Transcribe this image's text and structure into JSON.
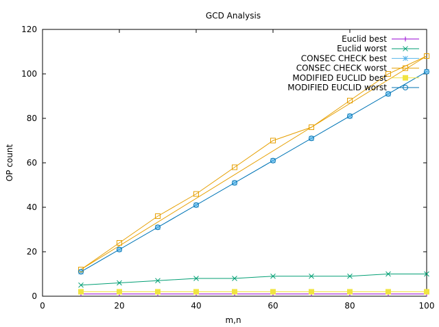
{
  "chart_data": {
    "type": "line",
    "title": "GCD Analysis",
    "xlabel": "m,n",
    "ylabel": "OP count",
    "xlim": [
      0,
      100
    ],
    "ylim": [
      0,
      120
    ],
    "x_ticks": [
      0,
      20,
      40,
      60,
      80,
      100
    ],
    "y_ticks": [
      0,
      20,
      40,
      60,
      80,
      100,
      120
    ],
    "grid": false,
    "legend_position": "top-right",
    "x": [
      10,
      20,
      30,
      40,
      50,
      60,
      70,
      80,
      90,
      100
    ],
    "series": [
      {
        "name": "Euclid best",
        "color": "#9400d3",
        "marker": "plus",
        "values": [
          1,
          1,
          1,
          1,
          1,
          1,
          1,
          1,
          1,
          1
        ]
      },
      {
        "name": "Euclid worst",
        "color": "#009e73",
        "marker": "x",
        "values": [
          5,
          6,
          7,
          8,
          8,
          9,
          9,
          9,
          10,
          10
        ]
      },
      {
        "name": "CONSEC CHECK best",
        "color": "#56b4e9",
        "marker": "star",
        "values": [
          11,
          21,
          31,
          41,
          51,
          61,
          71,
          81,
          91,
          101
        ]
      },
      {
        "name": "CONSEC CHECK worst",
        "color": "#e69f00",
        "marker": "open-square",
        "values": [
          12,
          24,
          36,
          46,
          58,
          70,
          76,
          88,
          100,
          108
        ]
      },
      {
        "name": "MODIFIED EUCLID best",
        "color": "#f0e442",
        "marker": "filled-square",
        "values": [
          2,
          2,
          2,
          2,
          2,
          2,
          2,
          2,
          2,
          2
        ]
      },
      {
        "name": "MODIFIED EUCLID worst",
        "color": "#0072b2",
        "marker": "open-circle",
        "values": [
          11,
          21,
          31,
          41,
          51,
          61,
          71,
          81,
          91,
          101
        ]
      }
    ],
    "extra_lines": [
      {
        "color": "#e69f00",
        "points": [
          [
            10,
            12
          ],
          [
            100,
            108
          ]
        ]
      }
    ]
  }
}
